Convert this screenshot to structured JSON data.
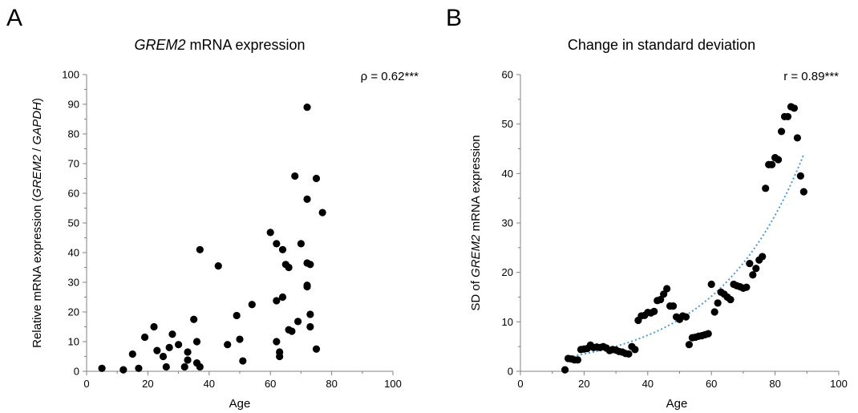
{
  "chart_data": [
    {
      "panel": "A",
      "type": "scatter",
      "title": {
        "italic": "GREM2",
        "rest": " mRNA expression"
      },
      "ylabel": {
        "pre": "Relative mRNA expression (",
        "gene1": "GREM2",
        "sep": " / ",
        "gene2": "GAPDH",
        "post": ")"
      },
      "xlabel": "Age",
      "annotation": "ρ = 0.62***",
      "xlim": [
        0,
        100
      ],
      "ylim": [
        0,
        100
      ],
      "xticks": [
        0,
        20,
        40,
        60,
        80,
        100
      ],
      "yticks": [
        0,
        10,
        20,
        30,
        40,
        50,
        60,
        70,
        80,
        90,
        100
      ],
      "points": [
        [
          5,
          1
        ],
        [
          12,
          0.5
        ],
        [
          15,
          5.8
        ],
        [
          17,
          1
        ],
        [
          19,
          11.5
        ],
        [
          22,
          15
        ],
        [
          23,
          7
        ],
        [
          25,
          5
        ],
        [
          26,
          1.5
        ],
        [
          27,
          8
        ],
        [
          28,
          12.5
        ],
        [
          30,
          9
        ],
        [
          32,
          1.5
        ],
        [
          33,
          6.5
        ],
        [
          33,
          3.8
        ],
        [
          35,
          17.5
        ],
        [
          36,
          10
        ],
        [
          36,
          2.8
        ],
        [
          37,
          1.5
        ],
        [
          37,
          41
        ],
        [
          43,
          35.5
        ],
        [
          46,
          9
        ],
        [
          49,
          18.8
        ],
        [
          50,
          10.8
        ],
        [
          51,
          3.5
        ],
        [
          54,
          22.5
        ],
        [
          60,
          46.8
        ],
        [
          62,
          43
        ],
        [
          62,
          23.8
        ],
        [
          62,
          10
        ],
        [
          63,
          6.5
        ],
        [
          63,
          5
        ],
        [
          64,
          41
        ],
        [
          64,
          25
        ],
        [
          65,
          36
        ],
        [
          66,
          35
        ],
        [
          66,
          14
        ],
        [
          67,
          13.5
        ],
        [
          68,
          65.8
        ],
        [
          69,
          16.8
        ],
        [
          70,
          43
        ],
        [
          72,
          89
        ],
        [
          72,
          58
        ],
        [
          72,
          36.5
        ],
        [
          72,
          29
        ],
        [
          72,
          28.5
        ],
        [
          73,
          36
        ],
        [
          73,
          19.2
        ],
        [
          73,
          15
        ],
        [
          75,
          65
        ],
        [
          75,
          7.5
        ],
        [
          77,
          53.5
        ]
      ]
    },
    {
      "panel": "B",
      "type": "scatter",
      "title": "Change in standard deviation",
      "ylabel": {
        "pre": "SD of ",
        "gene": "GREM2",
        "post": " mRNA expression"
      },
      "xlabel": "Age",
      "annotation": "r = 0.89***",
      "xlim": [
        0,
        100
      ],
      "ylim": [
        0,
        60
      ],
      "xticks": [
        0,
        20,
        40,
        60,
        80,
        100
      ],
      "yticks": [
        0,
        10,
        20,
        30,
        40,
        50,
        60
      ],
      "trendline": {
        "style": "dotted",
        "type": "exponential",
        "x_range": [
          14,
          89
        ],
        "color": "#4a9ad6"
      },
      "points": [
        [
          14,
          0.3
        ],
        [
          15,
          2.6
        ],
        [
          16,
          2.5
        ],
        [
          17,
          2.3
        ],
        [
          18,
          2.3
        ],
        [
          19,
          4.4
        ],
        [
          20,
          4.5
        ],
        [
          21,
          4.6
        ],
        [
          22,
          5.3
        ],
        [
          23,
          4.8
        ],
        [
          24,
          4.9
        ],
        [
          25,
          4.8
        ],
        [
          26,
          5.0
        ],
        [
          27,
          4.7
        ],
        [
          28,
          4.2
        ],
        [
          29,
          4.4
        ],
        [
          30,
          4.3
        ],
        [
          31,
          4.0
        ],
        [
          32,
          3.9
        ],
        [
          33,
          3.6
        ],
        [
          34,
          3.5
        ],
        [
          35,
          5.0
        ],
        [
          36,
          4.4
        ],
        [
          37,
          10.3
        ],
        [
          38,
          11.2
        ],
        [
          39,
          11.3
        ],
        [
          40,
          11.9
        ],
        [
          41,
          11.8
        ],
        [
          42,
          12.1
        ],
        [
          43,
          14.3
        ],
        [
          44,
          14.5
        ],
        [
          45,
          15.6
        ],
        [
          46,
          16.7
        ],
        [
          47,
          13.2
        ],
        [
          48,
          13.2
        ],
        [
          49,
          11.0
        ],
        [
          50,
          10.5
        ],
        [
          51,
          11.2
        ],
        [
          52,
          11.0
        ],
        [
          53,
          5.4
        ],
        [
          54,
          6.8
        ],
        [
          55,
          6.9
        ],
        [
          56,
          7.1
        ],
        [
          57,
          7.2
        ],
        [
          58,
          7.4
        ],
        [
          59,
          7.6
        ],
        [
          60,
          17.6
        ],
        [
          61,
          12.0
        ],
        [
          62,
          13.8
        ],
        [
          63,
          16.0
        ],
        [
          64,
          15.6
        ],
        [
          65,
          15.0
        ],
        [
          66,
          14.5
        ],
        [
          67,
          17.6
        ],
        [
          68,
          17.3
        ],
        [
          69,
          17.1
        ],
        [
          70,
          16.8
        ],
        [
          71,
          17.0
        ],
        [
          72,
          21.8
        ],
        [
          73,
          19.5
        ],
        [
          74,
          20.8
        ],
        [
          75,
          22.5
        ],
        [
          76,
          23.2
        ],
        [
          77,
          37.0
        ],
        [
          78,
          41.8
        ],
        [
          79,
          41.8
        ],
        [
          80,
          43.2
        ],
        [
          81,
          42.8
        ],
        [
          82,
          48.5
        ],
        [
          83,
          51.5
        ],
        [
          84,
          51.5
        ],
        [
          85,
          53.5
        ],
        [
          86,
          53.2
        ],
        [
          87,
          47.2
        ],
        [
          88,
          39.5
        ],
        [
          89,
          36.3
        ]
      ]
    }
  ]
}
